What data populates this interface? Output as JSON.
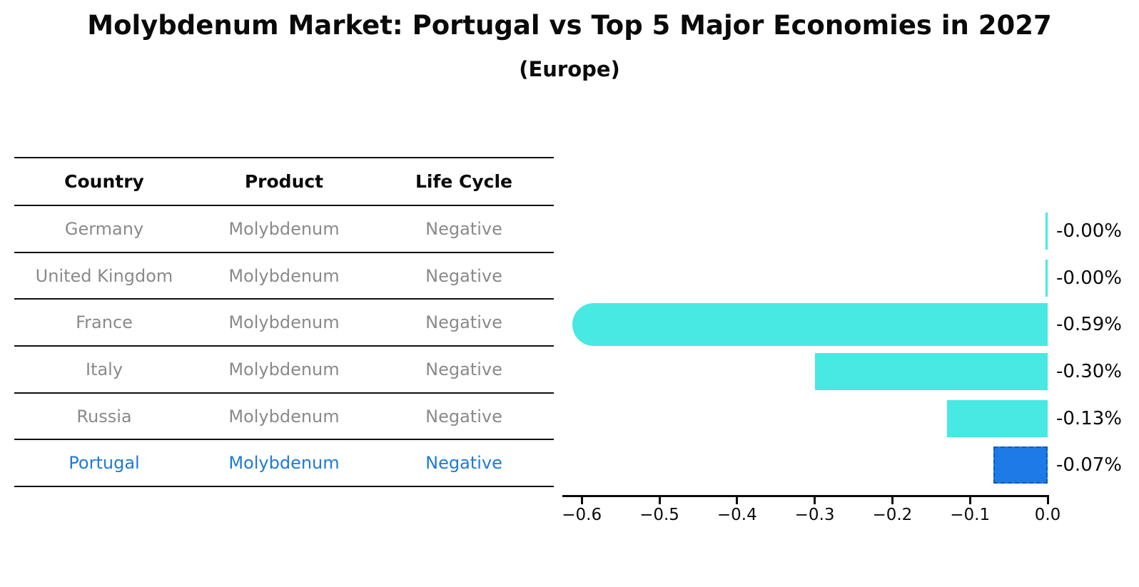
{
  "title": "Molybdenum Market: Portugal vs Top 5 Major Economies in 2027",
  "subtitle": "(Europe)",
  "table": {
    "headers": [
      "Country",
      "Product",
      "Life Cycle"
    ],
    "rows": [
      {
        "country": "Germany",
        "product": "Molybdenum",
        "life_cycle": "Negative",
        "highlight": false
      },
      {
        "country": "United Kingdom",
        "product": "Molybdenum",
        "life_cycle": "Negative",
        "highlight": false
      },
      {
        "country": "France",
        "product": "Molybdenum",
        "life_cycle": "Negative",
        "highlight": false
      },
      {
        "country": "Italy",
        "product": "Molybdenum",
        "life_cycle": "Negative",
        "highlight": false
      },
      {
        "country": "Russia",
        "product": "Molybdenum",
        "life_cycle": "Negative",
        "highlight": false
      },
      {
        "country": "Portugal",
        "product": "Molybdenum",
        "life_cycle": "Negative",
        "highlight": true
      }
    ]
  },
  "chart_data": {
    "type": "bar",
    "orientation": "horizontal",
    "title": "Molybdenum Market: Portugal vs Top 5 Major Economies in 2027",
    "subtitle": "(Europe)",
    "categories": [
      "Germany",
      "United Kingdom",
      "France",
      "Italy",
      "Russia",
      "Portugal"
    ],
    "values": [
      -0.0,
      -0.0,
      -0.59,
      -0.3,
      -0.13,
      -0.07
    ],
    "bar_labels": [
      "-0.00%",
      "-0.00%",
      "-0.59%",
      "-0.30%",
      "-0.13%",
      "-0.07%"
    ],
    "xlim": [
      -0.625,
      0
    ],
    "x_ticks": [
      -0.6,
      -0.5,
      -0.4,
      -0.3,
      -0.2,
      -0.1,
      0.0
    ],
    "x_tick_labels": [
      "−0.6",
      "−0.5",
      "−0.4",
      "−0.3",
      "−0.2",
      "−0.1",
      "0.0"
    ],
    "grid": false,
    "legend_position": "none",
    "bar_color": "#48E8E3",
    "highlight_bar_color": "#1E7AE6",
    "highlight_bar_border": "#1259B0",
    "highlight_index": 5,
    "rounded_cap_index": 2
  },
  "colors": {
    "background": "#ffffff",
    "title_text": "#0a0a0a",
    "table_line": "#111111",
    "table_text": "#8A8A8A",
    "highlight_text": "#1E7AD9",
    "axis": "#0a0a0a"
  }
}
